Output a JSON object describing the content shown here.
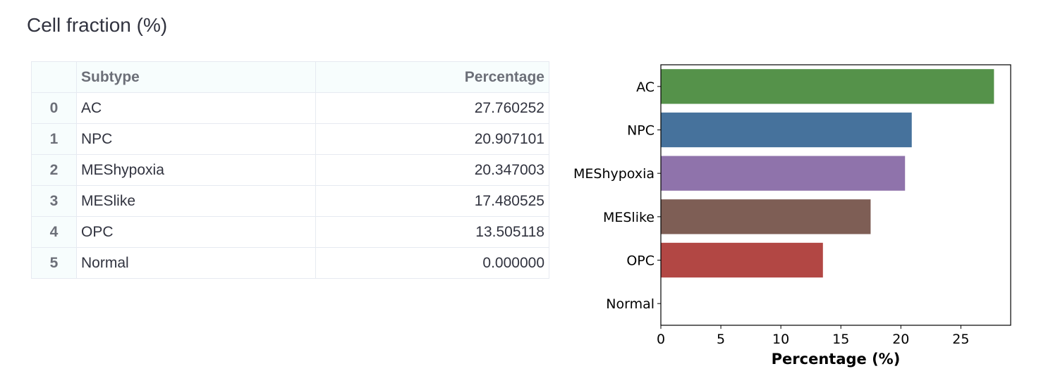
{
  "header": {
    "title": "Cell fraction (%)"
  },
  "table": {
    "index_header": "",
    "columns": [
      "Subtype",
      "Percentage"
    ],
    "rows": [
      {
        "index": "0",
        "subtype": "AC",
        "percentage": "27.760252"
      },
      {
        "index": "1",
        "subtype": "NPC",
        "percentage": "20.907101"
      },
      {
        "index": "2",
        "subtype": "MEShypoxia",
        "percentage": "20.347003"
      },
      {
        "index": "3",
        "subtype": "MESlike",
        "percentage": "17.480525"
      },
      {
        "index": "4",
        "subtype": "OPC",
        "percentage": "13.505118"
      },
      {
        "index": "5",
        "subtype": "Normal",
        "percentage": "0.000000"
      }
    ]
  },
  "chart_data": {
    "type": "bar",
    "orientation": "horizontal",
    "categories": [
      "AC",
      "NPC",
      "MEShypoxia",
      "MESlike",
      "OPC",
      "Normal"
    ],
    "values": [
      27.760252,
      20.907101,
      20.347003,
      17.480525,
      13.505118,
      0.0
    ],
    "colors": [
      "#55924a",
      "#46729c",
      "#8f73ab",
      "#7e5e55",
      "#b24744",
      "#c9c9c9"
    ],
    "xlabel": "Percentage (%)",
    "ylabel": "",
    "xlim": [
      0,
      29.15
    ],
    "xticks": [
      0,
      5,
      10,
      15,
      20,
      25
    ],
    "grid": false
  }
}
